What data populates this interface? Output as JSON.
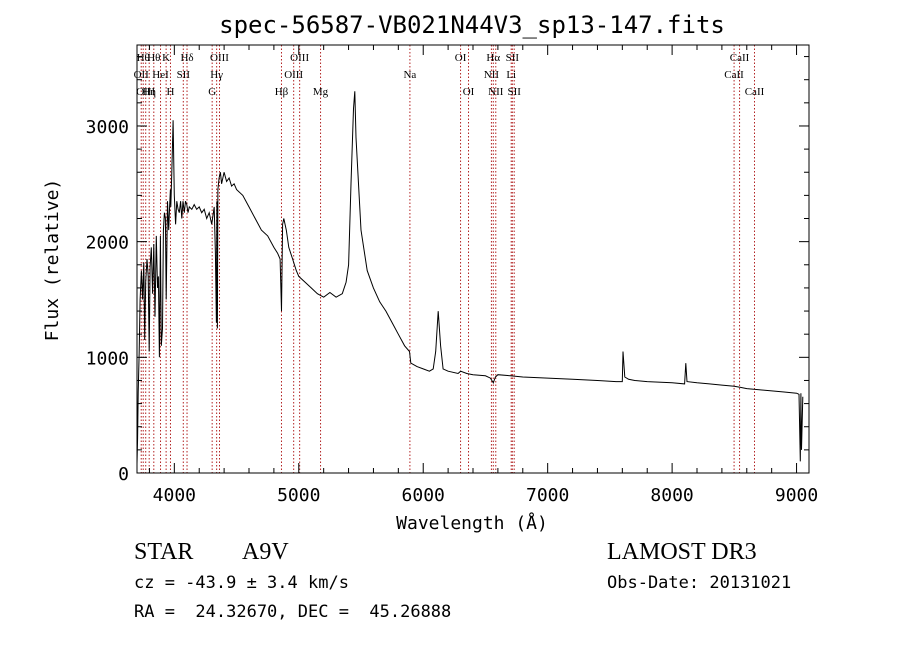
{
  "chart_data": {
    "type": "line",
    "title": "spec-56587-VB021N44V3_sp13-147.fits",
    "xlabel": "Wavelength (Å)",
    "ylabel": "Flux (relative)",
    "xlim": [
      3700,
      9100
    ],
    "ylim": [
      0,
      3700
    ],
    "xticks": [
      4000,
      5000,
      6000,
      7000,
      8000,
      9000
    ],
    "xtick_labels": [
      "4000",
      "5000",
      "6000",
      "7000",
      "8000",
      "9000"
    ],
    "yticks": [
      0,
      1000,
      2000,
      3000
    ],
    "ytick_labels": [
      "0",
      "1000",
      "2000",
      "3000"
    ],
    "grid": false,
    "series": [
      {
        "name": "flux",
        "x": [
          3700,
          3705,
          3710,
          3718,
          3725,
          3735,
          3745,
          3755,
          3762,
          3770,
          3780,
          3790,
          3798,
          3805,
          3815,
          3825,
          3835,
          3845,
          3855,
          3865,
          3872,
          3880,
          3888,
          3895,
          3905,
          3912,
          3920,
          3928,
          3935,
          3945,
          3955,
          3962,
          3968,
          3972,
          3980,
          3990,
          4000,
          4010,
          4020,
          4030,
          4040,
          4050,
          4060,
          4070,
          4080,
          4090,
          4100,
          4110,
          4120,
          4140,
          4160,
          4180,
          4200,
          4220,
          4240,
          4260,
          4280,
          4300,
          4320,
          4330,
          4338,
          4342,
          4346,
          4350,
          4360,
          4370,
          4380,
          4400,
          4420,
          4440,
          4460,
          4480,
          4500,
          4550,
          4600,
          4650,
          4700,
          4750,
          4800,
          4830,
          4850,
          4861,
          4870,
          4880,
          4900,
          4920,
          4950,
          4980,
          5000,
          5050,
          5100,
          5150,
          5200,
          5250,
          5300,
          5350,
          5380,
          5400,
          5420,
          5440,
          5450,
          5460,
          5480,
          5500,
          5550,
          5600,
          5650,
          5700,
          5750,
          5800,
          5850,
          5890,
          5900,
          5950,
          6000,
          6050,
          6080,
          6100,
          6120,
          6140,
          6160,
          6200,
          6280,
          6300,
          6350,
          6400,
          6500,
          6540,
          6563,
          6580,
          6600,
          6700,
          6800,
          7000,
          7200,
          7400,
          7550,
          7600,
          7605,
          7620,
          7650,
          7700,
          7800,
          8000,
          8100,
          8110,
          8120,
          8200,
          8300,
          8400,
          8500,
          8550,
          8600,
          8700,
          8800,
          8900,
          9000,
          9020,
          9030,
          9035,
          9040,
          9050
        ],
        "values": [
          80,
          300,
          700,
          1050,
          1500,
          1750,
          1500,
          1820,
          1150,
          1650,
          1850,
          1700,
          1050,
          1780,
          1950,
          1550,
          1980,
          1350,
          2050,
          1600,
          1700,
          1000,
          2050,
          1100,
          1250,
          2100,
          2250,
          2200,
          1500,
          2350,
          2100,
          2300,
          2450,
          2300,
          2600,
          3050,
          2400,
          2150,
          2350,
          2280,
          2250,
          2350,
          2200,
          2350,
          2250,
          2350,
          2320,
          2250,
          2300,
          2280,
          2320,
          2280,
          2300,
          2250,
          2280,
          2200,
          2250,
          2150,
          2300,
          1900,
          1300,
          2350,
          1250,
          2450,
          2550,
          2600,
          2500,
          2600,
          2520,
          2550,
          2480,
          2500,
          2450,
          2400,
          2300,
          2200,
          2100,
          2050,
          1950,
          1900,
          1850,
          1400,
          2150,
          2200,
          2100,
          1950,
          1850,
          1750,
          1700,
          1650,
          1600,
          1550,
          1520,
          1560,
          1520,
          1550,
          1650,
          1800,
          2500,
          3150,
          3300,
          2900,
          2500,
          2100,
          1750,
          1600,
          1480,
          1400,
          1300,
          1200,
          1100,
          1050,
          950,
          920,
          900,
          880,
          900,
          1050,
          1400,
          1100,
          900,
          880,
          860,
          880,
          860,
          850,
          840,
          820,
          780,
          830,
          850,
          840,
          830,
          820,
          810,
          800,
          790,
          790,
          1050,
          830,
          810,
          800,
          790,
          780,
          770,
          950,
          790,
          780,
          770,
          760,
          750,
          740,
          730,
          720,
          710,
          700,
          690,
          680,
          100,
          690,
          200,
          660
        ]
      }
    ],
    "lines": [
      {
        "x": 3734,
        "label": "OII",
        "row": 1
      },
      {
        "x": 3750,
        "label": "Hθ",
        "row": 0
      },
      {
        "x": 3770,
        "label": "OIII",
        "row": 2
      },
      {
        "x": 3798,
        "label": "Hη",
        "row": 2
      },
      {
        "x": 3835,
        "label": "Hθ",
        "row": 0
      },
      {
        "x": 3889,
        "label": "HeI",
        "row": 1
      },
      {
        "x": 3934,
        "label": "K",
        "row": 0
      },
      {
        "x": 3969,
        "label": "H",
        "row": 2
      },
      {
        "x": 4072,
        "label": "SII",
        "row": 1
      },
      {
        "x": 4102,
        "label": "Hδ",
        "row": 0
      },
      {
        "x": 4304,
        "label": "G",
        "row": 2
      },
      {
        "x": 4340,
        "label": "Hγ",
        "row": 1
      },
      {
        "x": 4363,
        "label": "OIII",
        "row": 0
      },
      {
        "x": 4861,
        "label": "Hβ",
        "row": 2
      },
      {
        "x": 4959,
        "label": "OIII",
        "row": 1
      },
      {
        "x": 5007,
        "label": "OIII",
        "row": 0
      },
      {
        "x": 5175,
        "label": "Mg",
        "row": 2
      },
      {
        "x": 5893,
        "label": "Na",
        "row": 1
      },
      {
        "x": 6300,
        "label": "OI",
        "row": 0
      },
      {
        "x": 6364,
        "label": "OI",
        "row": 2
      },
      {
        "x": 6548,
        "label": "NII",
        "row": 1
      },
      {
        "x": 6563,
        "label": "Hα",
        "row": 0
      },
      {
        "x": 6583,
        "label": "NII",
        "row": 2
      },
      {
        "x": 6707,
        "label": "Li",
        "row": 1
      },
      {
        "x": 6716,
        "label": "SII",
        "row": 0
      },
      {
        "x": 6731,
        "label": "SII",
        "row": 2
      },
      {
        "x": 8498,
        "label": "CaII",
        "row": 1
      },
      {
        "x": 8542,
        "label": "CaII",
        "row": 0
      },
      {
        "x": 8662,
        "label": "CaII",
        "row": 2
      }
    ]
  },
  "info": {
    "class_label": "STAR",
    "subclass": "A9V",
    "survey": "LAMOST DR3",
    "cz": "cz = -43.9 ± 3.4 km/s",
    "obs_date": "Obs-Date: 20131021",
    "radec": "RA =  24.32670, DEC =  45.26888"
  },
  "colors": {
    "spectrum": "#000000",
    "line_marker": "#b22222",
    "axis": "#000000",
    "background": "#ffffff"
  }
}
